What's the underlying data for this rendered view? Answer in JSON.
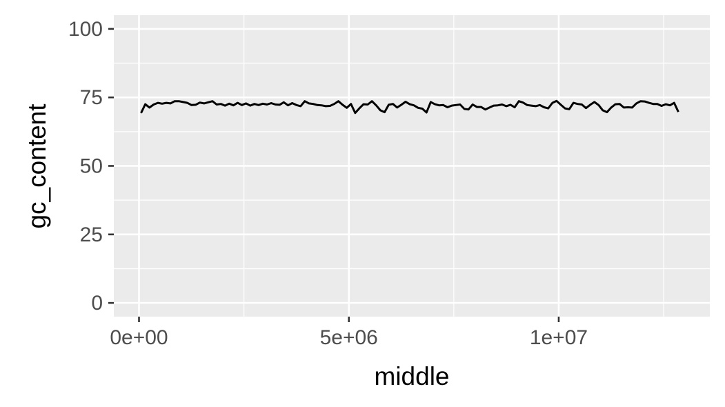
{
  "chart_data": {
    "type": "line",
    "title": "",
    "xlabel": "middle",
    "ylabel": "gc_content",
    "xlim": [
      -600000,
      13600000
    ],
    "ylim": [
      -5,
      105
    ],
    "x_ticks": [
      0,
      5000000,
      10000000
    ],
    "x_tick_labels": [
      "0e+00",
      "5e+06",
      "1e+07"
    ],
    "x_minor_ticks": [
      2500000,
      7500000,
      12500000
    ],
    "y_ticks": [
      0,
      25,
      50,
      75,
      100
    ],
    "y_tick_labels": [
      "0",
      "25",
      "50",
      "75",
      "100"
    ],
    "y_minor_ticks": [
      12.5,
      37.5,
      62.5,
      87.5
    ],
    "grid": true,
    "background_color": "#ebebeb",
    "grid_color": "#ffffff",
    "line_color": "#000000",
    "series": [
      {
        "x": [
          50000,
          150000,
          250000,
          350000,
          450000,
          550000,
          650000,
          750000,
          850000,
          950000,
          1050000,
          1150000,
          1250000,
          1350000,
          1450000,
          1550000,
          1650000,
          1750000,
          1850000,
          1950000,
          2050000,
          2150000,
          2250000,
          2350000,
          2450000,
          2550000,
          2650000,
          2750000,
          2850000,
          2950000,
          3050000,
          3150000,
          3250000,
          3350000,
          3450000,
          3550000,
          3650000,
          3750000,
          3850000,
          3950000,
          4050000,
          4150000,
          4250000,
          4350000,
          4450000,
          4550000,
          4650000,
          4750000,
          4850000,
          4950000,
          5050000,
          5150000,
          5250000,
          5350000,
          5450000,
          5550000,
          5650000,
          5750000,
          5850000,
          5950000,
          6050000,
          6150000,
          6250000,
          6350000,
          6450000,
          6550000,
          6650000,
          6750000,
          6850000,
          6950000,
          7050000,
          7150000,
          7250000,
          7350000,
          7450000,
          7550000,
          7650000,
          7750000,
          7850000,
          7950000,
          8050000,
          8150000,
          8250000,
          8350000,
          8450000,
          8550000,
          8650000,
          8750000,
          8850000,
          8950000,
          9050000,
          9150000,
          9250000,
          9350000,
          9450000,
          9550000,
          9650000,
          9750000,
          9850000,
          9950000,
          10050000,
          10150000,
          10250000,
          10350000,
          10450000,
          10550000,
          10650000,
          10750000,
          10850000,
          10950000,
          11050000,
          11150000,
          11250000,
          11350000,
          11450000,
          11550000,
          11650000,
          11750000,
          11850000,
          11950000,
          12050000,
          12150000,
          12250000,
          12350000,
          12450000,
          12550000,
          12650000,
          12750000,
          12850000
        ],
        "values": [
          69.3,
          72.5,
          71.3,
          72.4,
          73.0,
          72.7,
          73.0,
          72.8,
          73.6,
          73.6,
          73.3,
          73.0,
          72.2,
          72.3,
          73.1,
          72.8,
          73.2,
          73.6,
          72.4,
          72.6,
          72.0,
          72.7,
          72.1,
          73.0,
          72.2,
          72.8,
          72.0,
          72.6,
          72.2,
          72.7,
          72.4,
          72.9,
          72.4,
          72.3,
          73.2,
          72.1,
          72.9,
          72.2,
          71.8,
          73.6,
          72.8,
          72.6,
          72.2,
          72.1,
          71.8,
          71.9,
          72.6,
          73.6,
          72.3,
          71.2,
          72.6,
          69.3,
          71.0,
          72.5,
          72.4,
          73.6,
          72.1,
          70.3,
          69.6,
          72.3,
          72.6,
          71.3,
          72.3,
          73.4,
          72.5,
          72.1,
          71.2,
          70.9,
          69.5,
          73.3,
          72.5,
          72.1,
          72.2,
          71.4,
          72.0,
          72.2,
          72.4,
          70.8,
          70.6,
          72.4,
          71.5,
          71.5,
          70.6,
          71.3,
          72.0,
          72.1,
          72.4,
          71.8,
          72.3,
          71.4,
          73.6,
          73.1,
          72.2,
          72.0,
          71.8,
          72.2,
          71.4,
          71.0,
          73.0,
          73.7,
          72.3,
          71.0,
          70.7,
          73.0,
          72.6,
          72.4,
          71.1,
          72.3,
          73.3,
          72.2,
          70.3,
          69.6,
          71.3,
          72.5,
          72.6,
          71.3,
          71.4,
          71.3,
          72.8,
          73.6,
          73.5,
          73.0,
          72.6,
          72.6,
          71.9,
          72.5,
          72.1,
          73.0,
          69.7
        ]
      }
    ]
  }
}
